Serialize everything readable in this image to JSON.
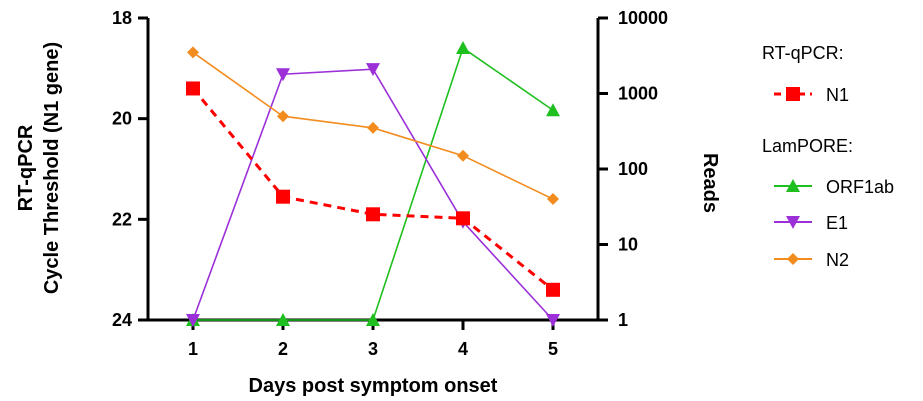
{
  "chart_data": {
    "type": "line",
    "x": [
      1,
      2,
      3,
      4,
      5
    ],
    "xlabel": "Days post symptom onset",
    "xlim": [
      0.5,
      5.5
    ],
    "left_axis": {
      "label_line1": "RT-qPCR",
      "label_line2": "Cycle Threshold  (N1 gene)",
      "range": [
        18,
        24
      ],
      "reversed": true,
      "ticks": [
        18,
        20,
        22,
        24
      ]
    },
    "right_axis": {
      "label": "Reads",
      "scale": "log",
      "range": [
        1,
        10000
      ],
      "ticks": [
        1,
        10,
        100,
        1000,
        10000
      ],
      "tick_labels": [
        "1",
        "10",
        "100",
        "1000",
        "10000"
      ]
    },
    "legend_groups": [
      {
        "title": "RT-qPCR:",
        "entries": [
          "N1"
        ]
      },
      {
        "title": "LamPORE:",
        "entries": [
          "ORF1ab",
          "E1",
          "N2"
        ]
      }
    ],
    "legend_position": "right",
    "series": [
      {
        "name": "N1",
        "axis": "left",
        "color": "#ff0000",
        "marker": "square",
        "line": "dashed",
        "values": [
          19.4,
          21.55,
          21.9,
          21.98,
          23.4
        ]
      },
      {
        "name": "ORF1ab",
        "axis": "right",
        "color": "#1fbf1f",
        "marker": "triangle-up",
        "line": "solid",
        "values": [
          1,
          1,
          1,
          4000,
          600
        ]
      },
      {
        "name": "E1",
        "axis": "right",
        "color": "#9b30d9",
        "marker": "triangle-down",
        "line": "solid",
        "values": [
          1,
          1800,
          2100,
          20,
          1
        ]
      },
      {
        "name": "N2",
        "axis": "right",
        "color": "#f28c1e",
        "marker": "diamond",
        "line": "solid",
        "values": [
          3500,
          500,
          350,
          150,
          40
        ]
      }
    ]
  }
}
